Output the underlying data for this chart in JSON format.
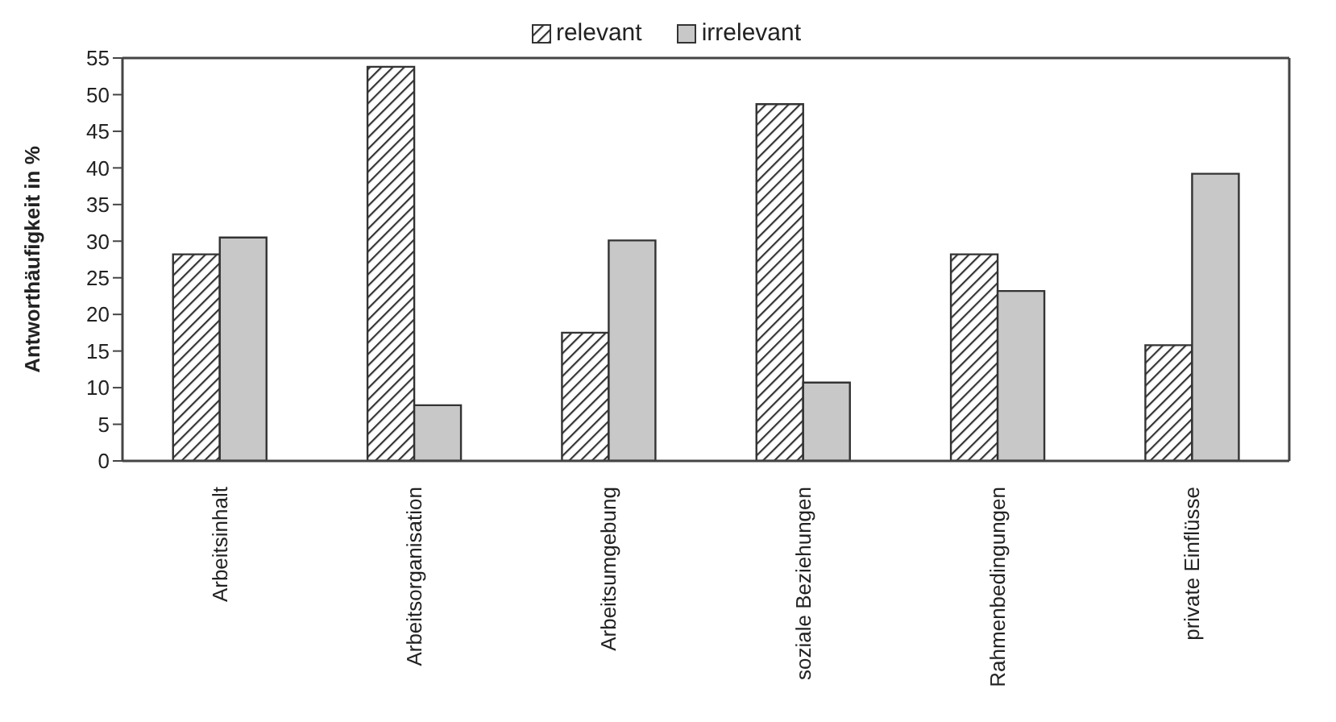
{
  "chart_data": {
    "type": "bar",
    "ylabel": "Antworthäufigkeit in %",
    "categories": [
      "Arbeitsinhalt",
      "Arbeitsorganisation",
      "Arbeitsumgebung",
      "soziale Beziehungen",
      "Rahmenbedingungen",
      "private Einflüsse"
    ],
    "series": [
      {
        "name": "relevant",
        "color": "#333333",
        "values": [
          28.2,
          53.8,
          17.5,
          48.7,
          28.2,
          15.8
        ]
      },
      {
        "name": "irrelevant",
        "color": "#c8c8c8",
        "values": [
          30.5,
          7.6,
          30.1,
          10.7,
          23.2,
          39.2
        ]
      }
    ],
    "ylim": [
      0,
      55
    ],
    "yticks": [
      0,
      5,
      10,
      15,
      20,
      25,
      30,
      35,
      40,
      45,
      50,
      55
    ],
    "grid": false,
    "legend": "top"
  }
}
